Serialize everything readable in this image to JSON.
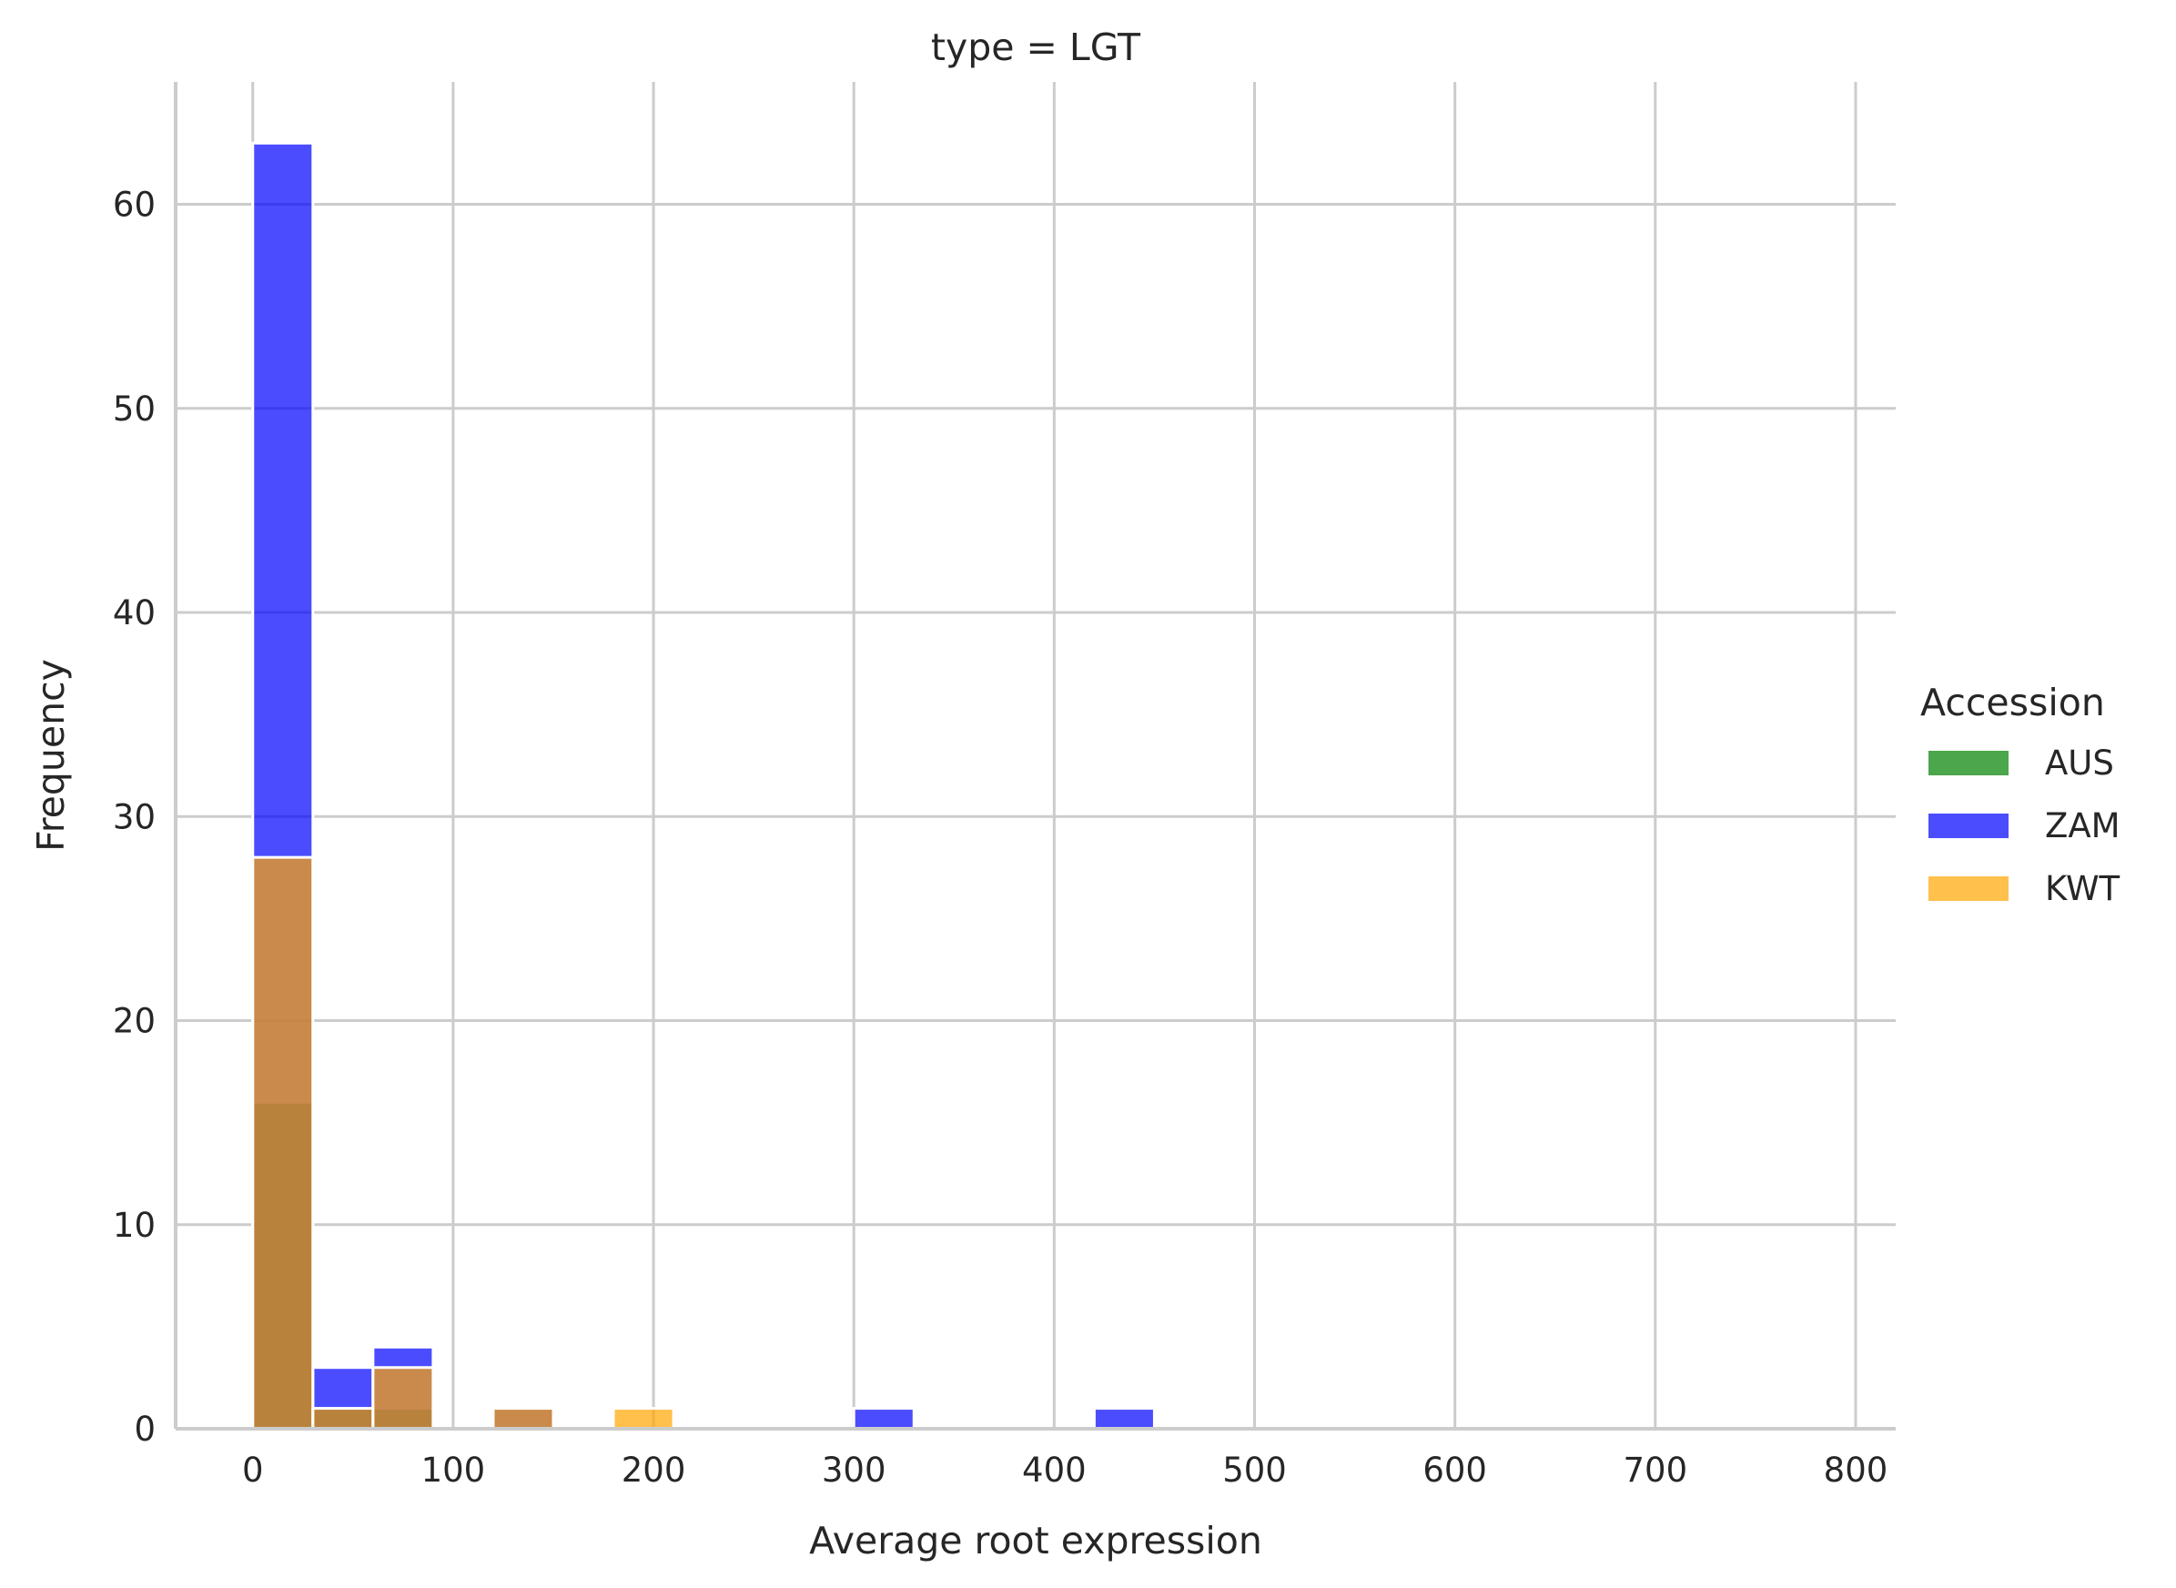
{
  "chart_data": {
    "type": "bar",
    "title": "type = LGT",
    "xlabel": "Average root expression",
    "ylabel": "Frequency",
    "xlim": [
      -38.5,
      820
    ],
    "ylim": [
      0,
      66
    ],
    "xticks": [
      0,
      100,
      200,
      300,
      400,
      500,
      600,
      700,
      800
    ],
    "yticks": [
      0,
      10,
      20,
      30,
      40,
      50,
      60
    ],
    "grid": true,
    "bin_width": 30,
    "legend": {
      "title": "Accession",
      "placement": "right"
    },
    "series": [
      {
        "name": "AUS",
        "color": "#008000",
        "bins": [
          {
            "x0": 0,
            "x1": 30,
            "count": 16
          },
          {
            "x0": 30,
            "x1": 60,
            "count": 1
          },
          {
            "x0": 60,
            "x1": 90,
            "count": 1
          }
        ]
      },
      {
        "name": "ZAM",
        "color": "#0000ff",
        "bins": [
          {
            "x0": 0,
            "x1": 30,
            "count": 63
          },
          {
            "x0": 30,
            "x1": 60,
            "count": 3
          },
          {
            "x0": 60,
            "x1": 90,
            "count": 4
          },
          {
            "x0": 120,
            "x1": 150,
            "count": 1
          },
          {
            "x0": 300,
            "x1": 330,
            "count": 1
          },
          {
            "x0": 420,
            "x1": 450,
            "count": 1
          }
        ]
      },
      {
        "name": "KWT",
        "color": "#ffa500",
        "bins": [
          {
            "x0": 0,
            "x1": 30,
            "count": 28
          },
          {
            "x0": 30,
            "x1": 60,
            "count": 1
          },
          {
            "x0": 60,
            "x1": 90,
            "count": 3
          },
          {
            "x0": 120,
            "x1": 150,
            "count": 1
          },
          {
            "x0": 180,
            "x1": 210,
            "count": 1
          }
        ]
      }
    ]
  }
}
